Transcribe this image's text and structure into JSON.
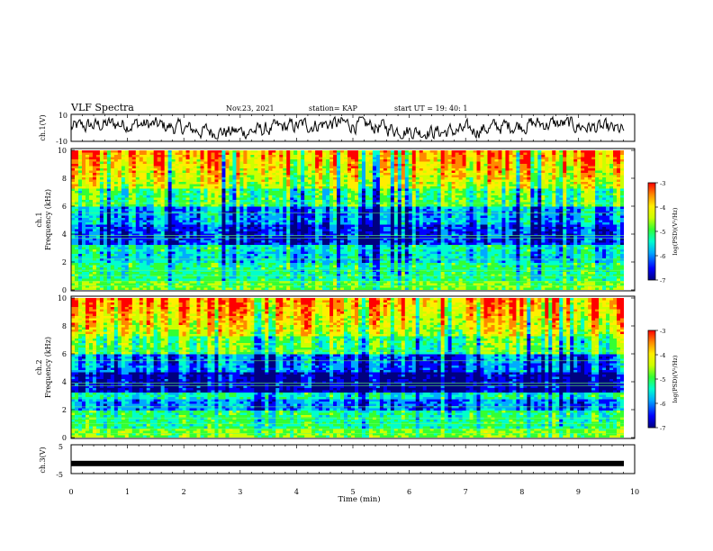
{
  "header": {
    "title": "VLF Spectra",
    "date": "Nov.23, 2021",
    "station": "station= KAP",
    "start": "start  UT =   19: 40: 1"
  },
  "chart_data": [
    {
      "type": "line",
      "ylabel": "ch.1(V)",
      "ylim": [
        -10,
        10
      ],
      "ytick_labels": [
        "10",
        "-10"
      ],
      "xlim": [
        0,
        10
      ],
      "note": "noisy waveform oscillating roughly between -6 and +6 V over ~9.8 min"
    },
    {
      "type": "heatmap",
      "ylabel_line1": "ch.1",
      "ylabel_line2": "Frequency (kHz)",
      "ylim": [
        0,
        10
      ],
      "ytick_labels": [
        "0",
        "2",
        "4",
        "6",
        "8",
        "10"
      ],
      "xlim": [
        0,
        10
      ],
      "colorbar": {
        "label": "log(PSD)(V²/Hz)",
        "range": [
          -7,
          -3
        ],
        "tick_labels": [
          "-3",
          "-4",
          "-5",
          "-6",
          "-7"
        ]
      }
    },
    {
      "type": "heatmap",
      "ylabel_line1": "ch.2",
      "ylabel_line2": "Frequency (kHz)",
      "ylim": [
        0,
        10
      ],
      "ytick_labels": [
        "0",
        "2",
        "4",
        "6",
        "8",
        "10"
      ],
      "xlim": [
        0,
        10
      ],
      "colorbar": {
        "label": "log(PSD)(V²/Hz)",
        "range": [
          -7,
          -3
        ],
        "tick_labels": [
          "-3",
          "-4",
          "-5",
          "-6",
          "-7"
        ]
      }
    },
    {
      "type": "line",
      "ylabel": "ch.3(V)",
      "ylim": [
        -5,
        5
      ],
      "ytick_labels": [
        "5",
        "-5"
      ],
      "xlim": [
        0,
        10
      ],
      "xlabel": "Time (min)",
      "xtick_labels": [
        "0",
        "1",
        "2",
        "3",
        "4",
        "5",
        "6",
        "7",
        "8",
        "9",
        "10"
      ],
      "constant_value": -1.5,
      "note": "thick flat trace near -1.5 V from 0 to ~9.8 min"
    }
  ],
  "colors": {
    "colormap": [
      "#000080",
      "#0000ff",
      "#00aaff",
      "#00ffcc",
      "#33ff33",
      "#ccff00",
      "#ffee00",
      "#ff8800",
      "#ff0000"
    ],
    "axis": "#000000",
    "trace": "#000000"
  }
}
